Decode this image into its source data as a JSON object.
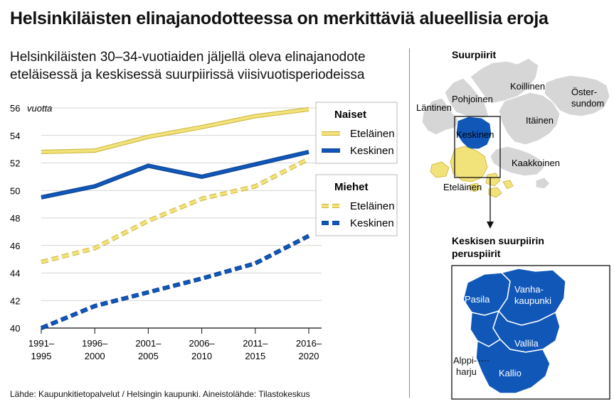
{
  "headline": "Helsinkiläisten elinajanodotteessa on merkittäviä alueellisia eroja",
  "subtitle_line1": "Helsinkiläisten 30–34-vuotiaiden jäljellä oleva elinajanodote",
  "subtitle_line2": "eteläisessä ja keskisessä suurpiirissä viisivuotisperiodeissa",
  "source": "Lähde: Kaupunkitietopalvelut / Helsingin kaupunki. Aineistolähde: Tilastokeskus",
  "colors": {
    "yellow": "#f2e27a",
    "yellow_edge": "#c9b23a",
    "blue": "#1057b8",
    "blue_dark": "#0a3f8c",
    "map_grey": "#d6d6d6"
  },
  "chart_data": {
    "type": "line",
    "ylabel": "vuotta",
    "ylim": [
      40,
      56
    ],
    "y_ticks": [
      40,
      42,
      44,
      46,
      48,
      50,
      52,
      54,
      56
    ],
    "categories": [
      [
        "1991–",
        "1995"
      ],
      [
        "1996–",
        "2000"
      ],
      [
        "2001–",
        "2005"
      ],
      [
        "2006–",
        "2010"
      ],
      [
        "2011–",
        "2015"
      ],
      [
        "2016–",
        "2020"
      ]
    ],
    "legend_groups": [
      "Naiset",
      "Miehet"
    ],
    "series": [
      {
        "group": "Naiset",
        "name": "Eteläinen",
        "color": "yellow",
        "dashed": false,
        "values": [
          52.8,
          52.9,
          53.9,
          54.6,
          55.4,
          55.9
        ]
      },
      {
        "group": "Naiset",
        "name": "Keskinen",
        "color": "blue",
        "dashed": false,
        "values": [
          49.5,
          50.3,
          51.8,
          51.0,
          51.9,
          52.8
        ]
      },
      {
        "group": "Miehet",
        "name": "Eteläinen",
        "color": "yellow",
        "dashed": true,
        "values": [
          44.8,
          45.8,
          47.8,
          49.4,
          50.3,
          52.3
        ]
      },
      {
        "group": "Miehet",
        "name": "Keskinen",
        "color": "blue",
        "dashed": true,
        "values": [
          40.0,
          41.6,
          42.6,
          43.6,
          44.7,
          46.7
        ]
      }
    ]
  },
  "map": {
    "title": "Suurpiirit",
    "districts": [
      "Koillinen",
      "Pohjoinen",
      "Läntinen",
      "Öster-",
      "sundom",
      "Itäinen",
      "Keskinen",
      "Kaakkoinen",
      "Eteläinen"
    ],
    "detail_title_line1": "Keskisen suurpiirin",
    "detail_title_line2": "peruspiirit",
    "subdistricts": [
      "Pasila",
      "Vanha-",
      "kaupunki",
      "Vallila",
      "Alppi-",
      "harju",
      "Kallio"
    ]
  }
}
